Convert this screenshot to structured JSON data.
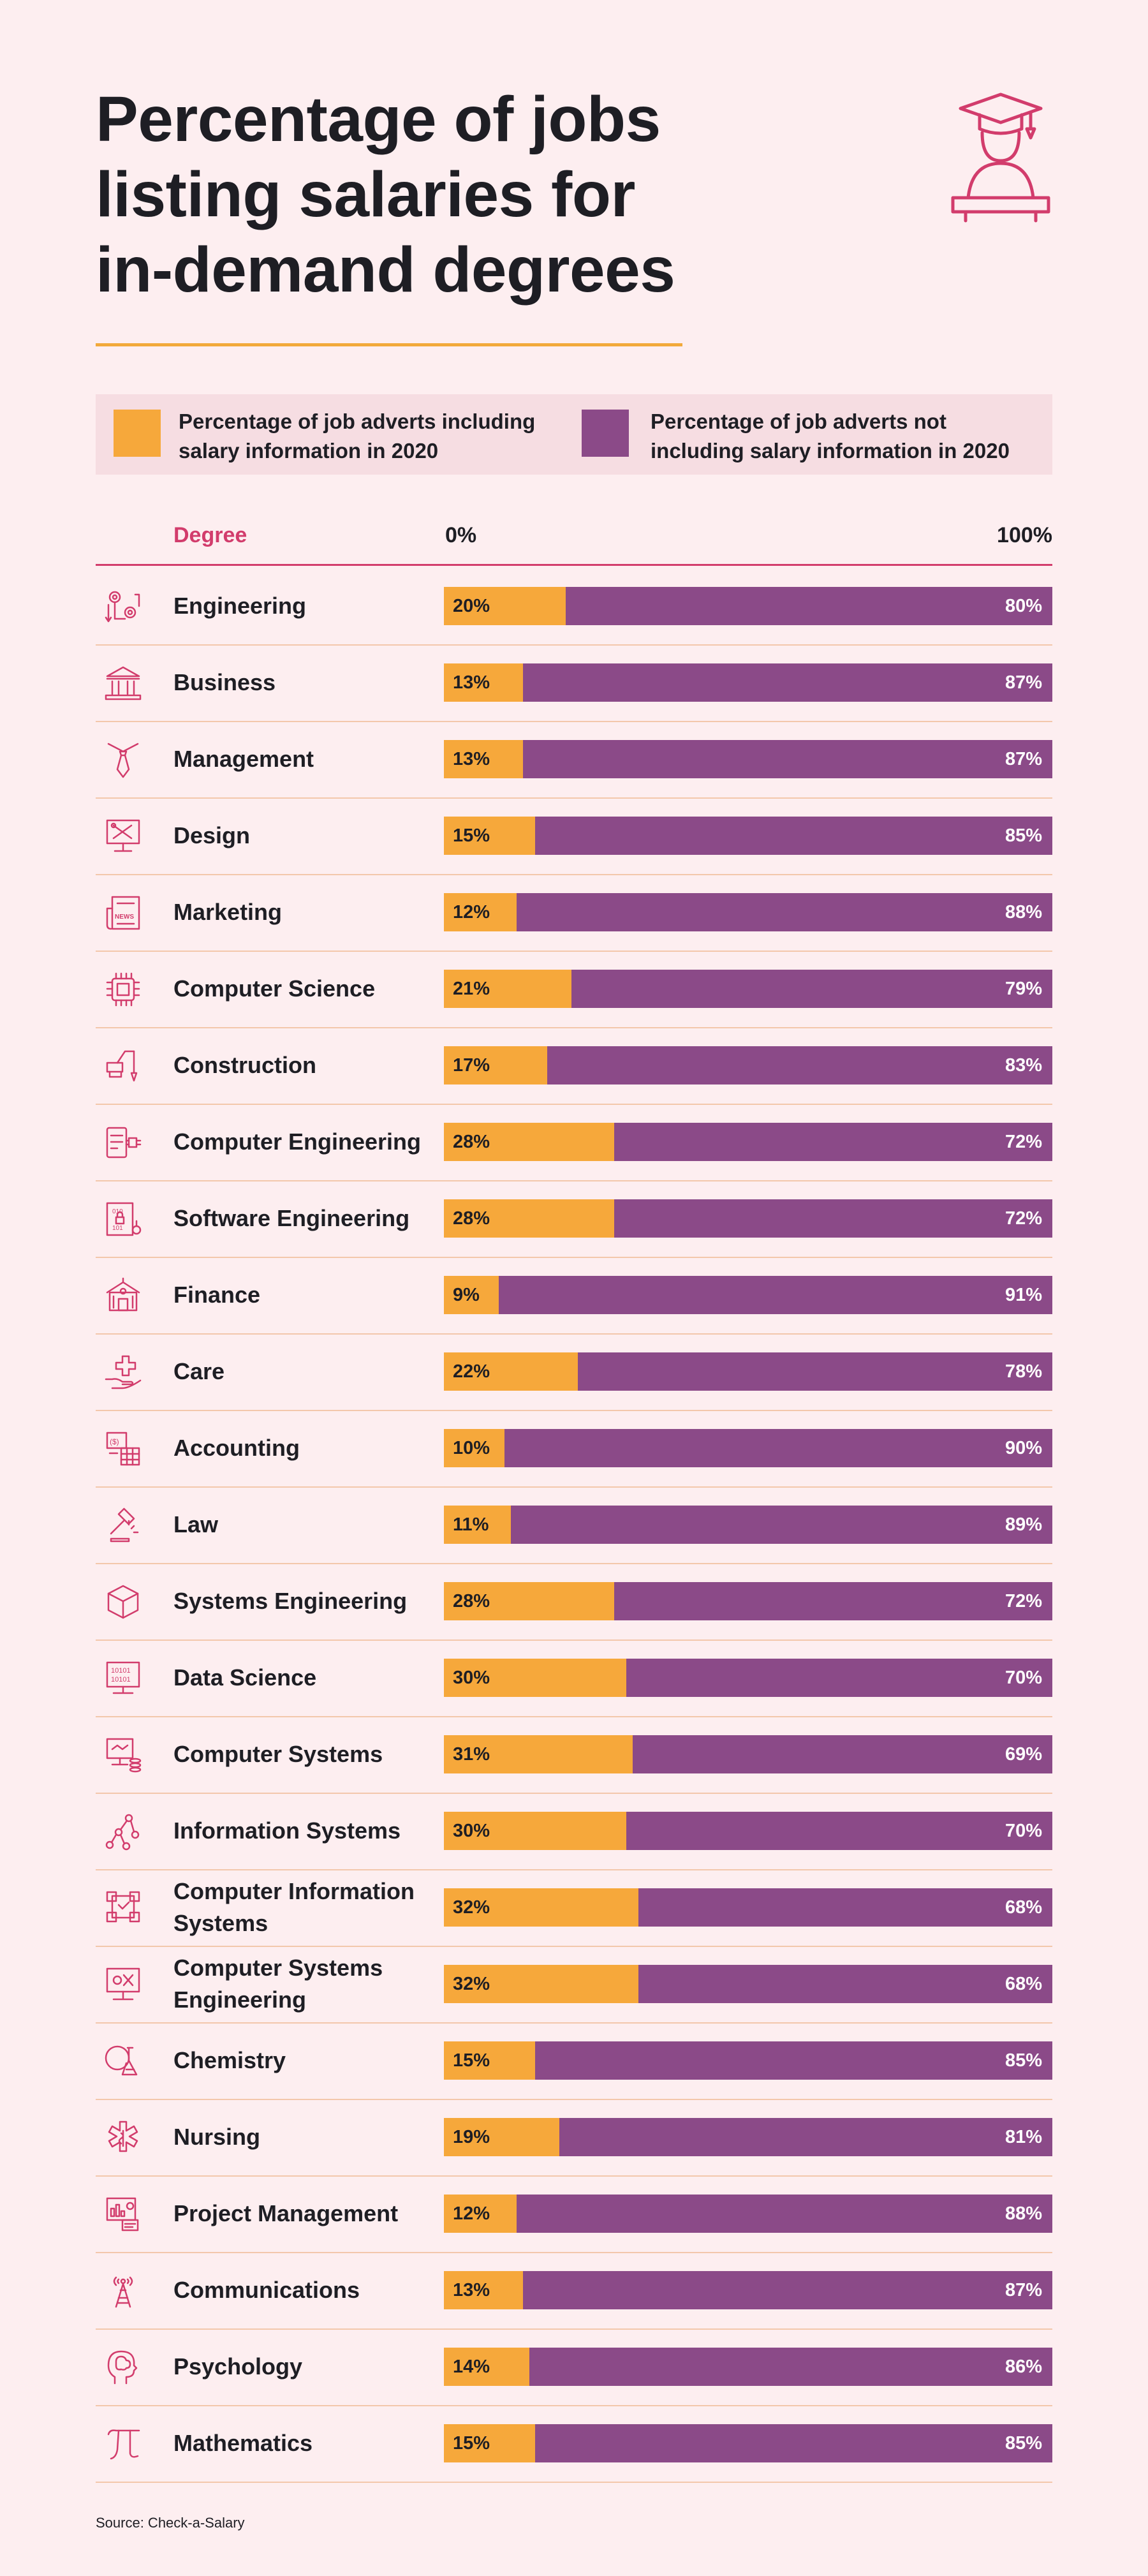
{
  "title_lines": [
    "Percentage of jobs",
    "listing salaries for",
    "in-demand degrees"
  ],
  "legend": [
    {
      "line1": "Percentage of job adverts including",
      "line2": "salary information in 2020",
      "color": "#f6a83b"
    },
    {
      "line1": "Percentage of job adverts not",
      "line2": "including salary information in 2020",
      "color": "#8b4a88"
    }
  ],
  "header": {
    "degree": "Degree",
    "min": "0%",
    "max": "100%"
  },
  "colors": {
    "background": "#fdeef0",
    "accent": "#d23c6c",
    "orange": "#f6a83b",
    "purple": "#8b4a88"
  },
  "chart_data": {
    "type": "bar",
    "orientation": "horizontal-stacked-100",
    "xlim": [
      0,
      100
    ],
    "categories": [
      "Engineering",
      "Business",
      "Management",
      "Design",
      "Marketing",
      "Computer Science",
      "Construction",
      "Computer Engineering",
      "Software Engineering",
      "Finance",
      "Care",
      "Accounting",
      "Law",
      "Systems Engineering",
      "Data Science",
      "Computer Systems",
      "Information Systems",
      "Computer Information Systems",
      "Computer Systems Engineering",
      "Chemistry",
      "Nursing",
      "Project Management",
      "Communications",
      "Psychology",
      "Mathematics"
    ],
    "icons": [
      "gears-icon",
      "bank-building-icon",
      "necktie-icon",
      "design-tools-monitor-icon",
      "newspaper-icon",
      "microchip-icon",
      "construction-crane-icon",
      "circuit-board-icon",
      "binary-lock-document-icon",
      "finance-building-icon",
      "caring-hand-cross-icon",
      "calculator-icon",
      "gavel-icon",
      "cube-icon",
      "binary-monitor-icon",
      "monitor-coins-icon",
      "network-nodes-icon",
      "system-blocks-icon",
      "monitor-settings-icon",
      "chemistry-flask-icon",
      "medical-star-icon",
      "dashboard-report-icon",
      "radio-tower-icon",
      "head-brain-icon",
      "pi-icon"
    ],
    "series": [
      {
        "name": "Percentage of job adverts including salary information in 2020",
        "values": [
          20,
          13,
          13,
          15,
          12,
          21,
          17,
          28,
          28,
          9,
          22,
          10,
          11,
          28,
          30,
          31,
          30,
          32,
          32,
          15,
          19,
          12,
          13,
          14,
          15
        ]
      },
      {
        "name": "Percentage of job adverts not including salary information in 2020",
        "values": [
          80,
          87,
          87,
          85,
          88,
          79,
          83,
          72,
          72,
          91,
          78,
          90,
          89,
          72,
          70,
          69,
          70,
          68,
          68,
          85,
          81,
          88,
          87,
          86,
          85
        ]
      }
    ]
  },
  "source": "Source: Check-a-Salary"
}
